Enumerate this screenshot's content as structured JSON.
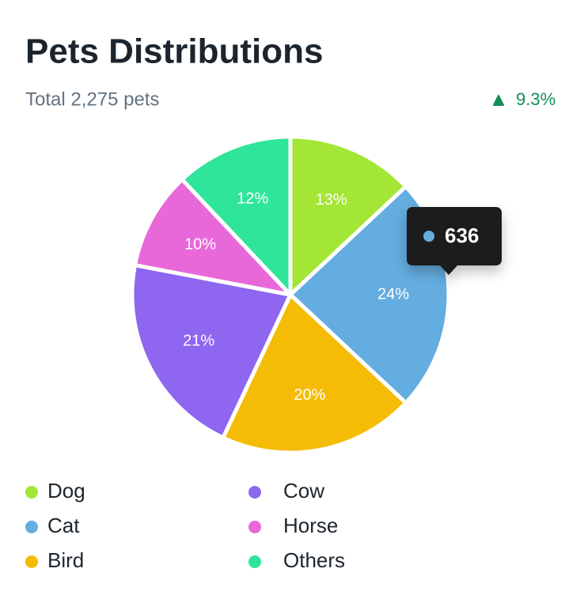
{
  "chart_data": {
    "type": "pie",
    "title": "Pets Distributions",
    "subtitle": "Total 2,275 pets",
    "change": "9.3%",
    "categories": [
      "Dog",
      "Cat",
      "Bird",
      "Cow",
      "Horse",
      "Others"
    ],
    "values": [
      13,
      24,
      20,
      21,
      10,
      12
    ],
    "value_labels": [
      "13%",
      "24%",
      "20%",
      "21%",
      "10%",
      "12%"
    ],
    "colors": [
      "#a3e635",
      "#64ade0",
      "#f4bc05",
      "#8e66ef",
      "#e868da",
      "#2ee59a"
    ],
    "tooltip": {
      "value": 636
    }
  }
}
